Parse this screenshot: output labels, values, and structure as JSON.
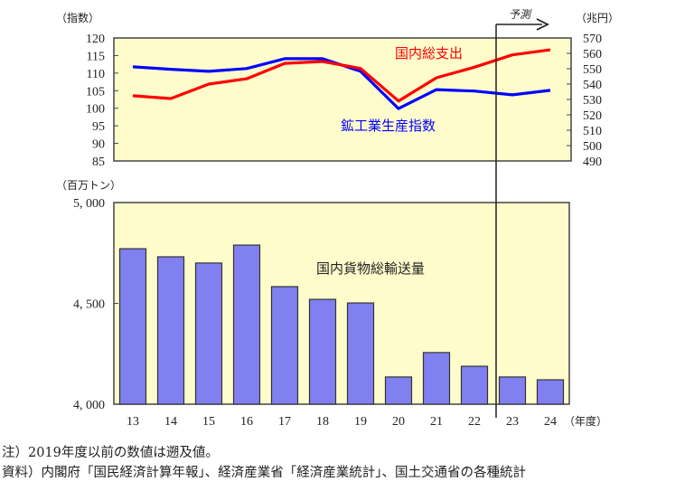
{
  "chart_data": [
    {
      "type": "line",
      "title": "",
      "x": [
        "13",
        "14",
        "15",
        "16",
        "17",
        "18",
        "19",
        "20",
        "21",
        "22",
        "23",
        "24"
      ],
      "left_axis": {
        "label": "（指数）",
        "range": [
          85,
          120
        ],
        "ticks": [
          "120",
          "115",
          "110",
          "105",
          "100",
          "95",
          "90",
          "85"
        ]
      },
      "right_axis": {
        "label": "（兆円）",
        "range": [
          490,
          570
        ],
        "ticks": [
          "570",
          "560",
          "550",
          "540",
          "530",
          "520",
          "510",
          "500",
          "490"
        ]
      },
      "series": [
        {
          "name": "国内総支出",
          "axis": "right",
          "color": "#ff0000",
          "values": [
            532.4,
            530.6,
            540.0,
            543.5,
            553.5,
            554.7,
            550.2,
            529.0,
            544.1,
            551.0,
            559.0,
            562.3
          ]
        },
        {
          "name": "鉱工業生産指数",
          "axis": "left",
          "color": "#0000ff",
          "values": [
            111.8,
            111.1,
            110.5,
            111.3,
            114.1,
            114.1,
            110.5,
            99.9,
            105.3,
            104.9,
            103.8,
            105.1
          ]
        }
      ],
      "background": "#fffccc",
      "grid": false
    },
    {
      "type": "bar",
      "title": "",
      "categories": [
        "13",
        "14",
        "15",
        "16",
        "17",
        "18",
        "19",
        "20",
        "21",
        "22",
        "23",
        "24"
      ],
      "xlabel": "（年度）",
      "ylabel": "（百万トン）",
      "ylim": [
        4000,
        5000
      ],
      "yticks": [
        "5,000",
        "4,500",
        "4,000"
      ],
      "series": [
        {
          "name": "国内貨物総輸送量",
          "color": "#8080f0",
          "values": [
            4771,
            4731,
            4700,
            4789,
            4583,
            4520,
            4502,
            4135,
            4256,
            4188,
            4135,
            4121
          ]
        }
      ],
      "background": "#fffccc",
      "grid": false
    }
  ],
  "forecast_marker": {
    "label": "予測",
    "start_category": "23"
  },
  "labels": {
    "left_axis_unit": "（指数）",
    "right_axis_unit": "（兆円）",
    "bar_axis_unit": "（百万トン）",
    "x_axis_unit": "（年度）",
    "gdp_series": "国内総支出",
    "iip_series": "鉱工業生産指数",
    "freight_series": "国内貨物総輸送量",
    "forecast": "予測"
  },
  "notes": {
    "note": "注）2019年度以前の数値は遡及値。",
    "source": "資料）内閣府「国民経済計算年報」、経済産業省「経済産業統計」、国土交通省の各種統計"
  }
}
